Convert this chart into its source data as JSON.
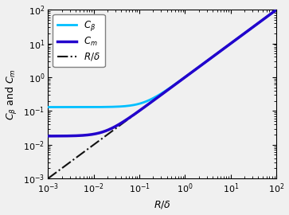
{
  "xlim": [
    0.001,
    100.0
  ],
  "ylim": [
    0.001,
    100.0
  ],
  "xlabel": "$R/\\delta$",
  "ylabel": "$C_{\\beta}$ and $C_{m}$",
  "color_cbeta": "#00BFFF",
  "color_cm": "#2200CC",
  "color_rdelta": "#111111",
  "lw_cbeta": 2.0,
  "lw_cm": 2.5,
  "lw_rdelta": 1.5,
  "cbeta_c": 0.13,
  "cm_c": 0.018,
  "n_points": 600,
  "bg_color": "#f0f0f0",
  "figsize": [
    3.63,
    2.7
  ],
  "dpi": 100
}
